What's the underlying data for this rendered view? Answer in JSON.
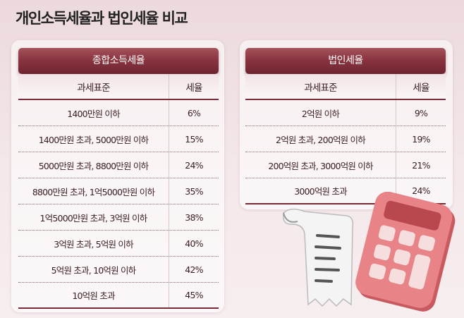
{
  "title": "개인소득세율과 법인세율 비교",
  "chart_data": [
    {
      "type": "table",
      "title": "종합소득세율",
      "columns": [
        "과세표준",
        "세율"
      ],
      "rows": [
        [
          "1400만원 이하",
          "6%"
        ],
        [
          "1400만원 초과, 5000만원 이하",
          "15%"
        ],
        [
          "5000만원 초과, 8800만원 이하",
          "24%"
        ],
        [
          "8800만원 초과, 1억5000만원 이하",
          "35%"
        ],
        [
          "1억5000만원 초과, 3억원 이하",
          "38%"
        ],
        [
          "3억원 초과, 5억원 이하",
          "40%"
        ],
        [
          "5억원 초과, 10억원 이하",
          "42%"
        ],
        [
          "10억원 초과",
          "45%"
        ]
      ]
    },
    {
      "type": "table",
      "title": "법인세율",
      "columns": [
        "과세표준",
        "세율"
      ],
      "rows": [
        [
          "2억원 이하",
          "9%"
        ],
        [
          "2억원 초과, 200억원 이하",
          "19%"
        ],
        [
          "200억원 초과, 3000억원 이하",
          "21%"
        ],
        [
          "3000억원 초과",
          "24%"
        ]
      ]
    }
  ],
  "colors": {
    "header": "#8a3540",
    "accent_line": "#7a2a34",
    "calculator": "#e07a7e"
  },
  "illustration_icons": [
    "receipt-icon",
    "calculator-icon"
  ]
}
